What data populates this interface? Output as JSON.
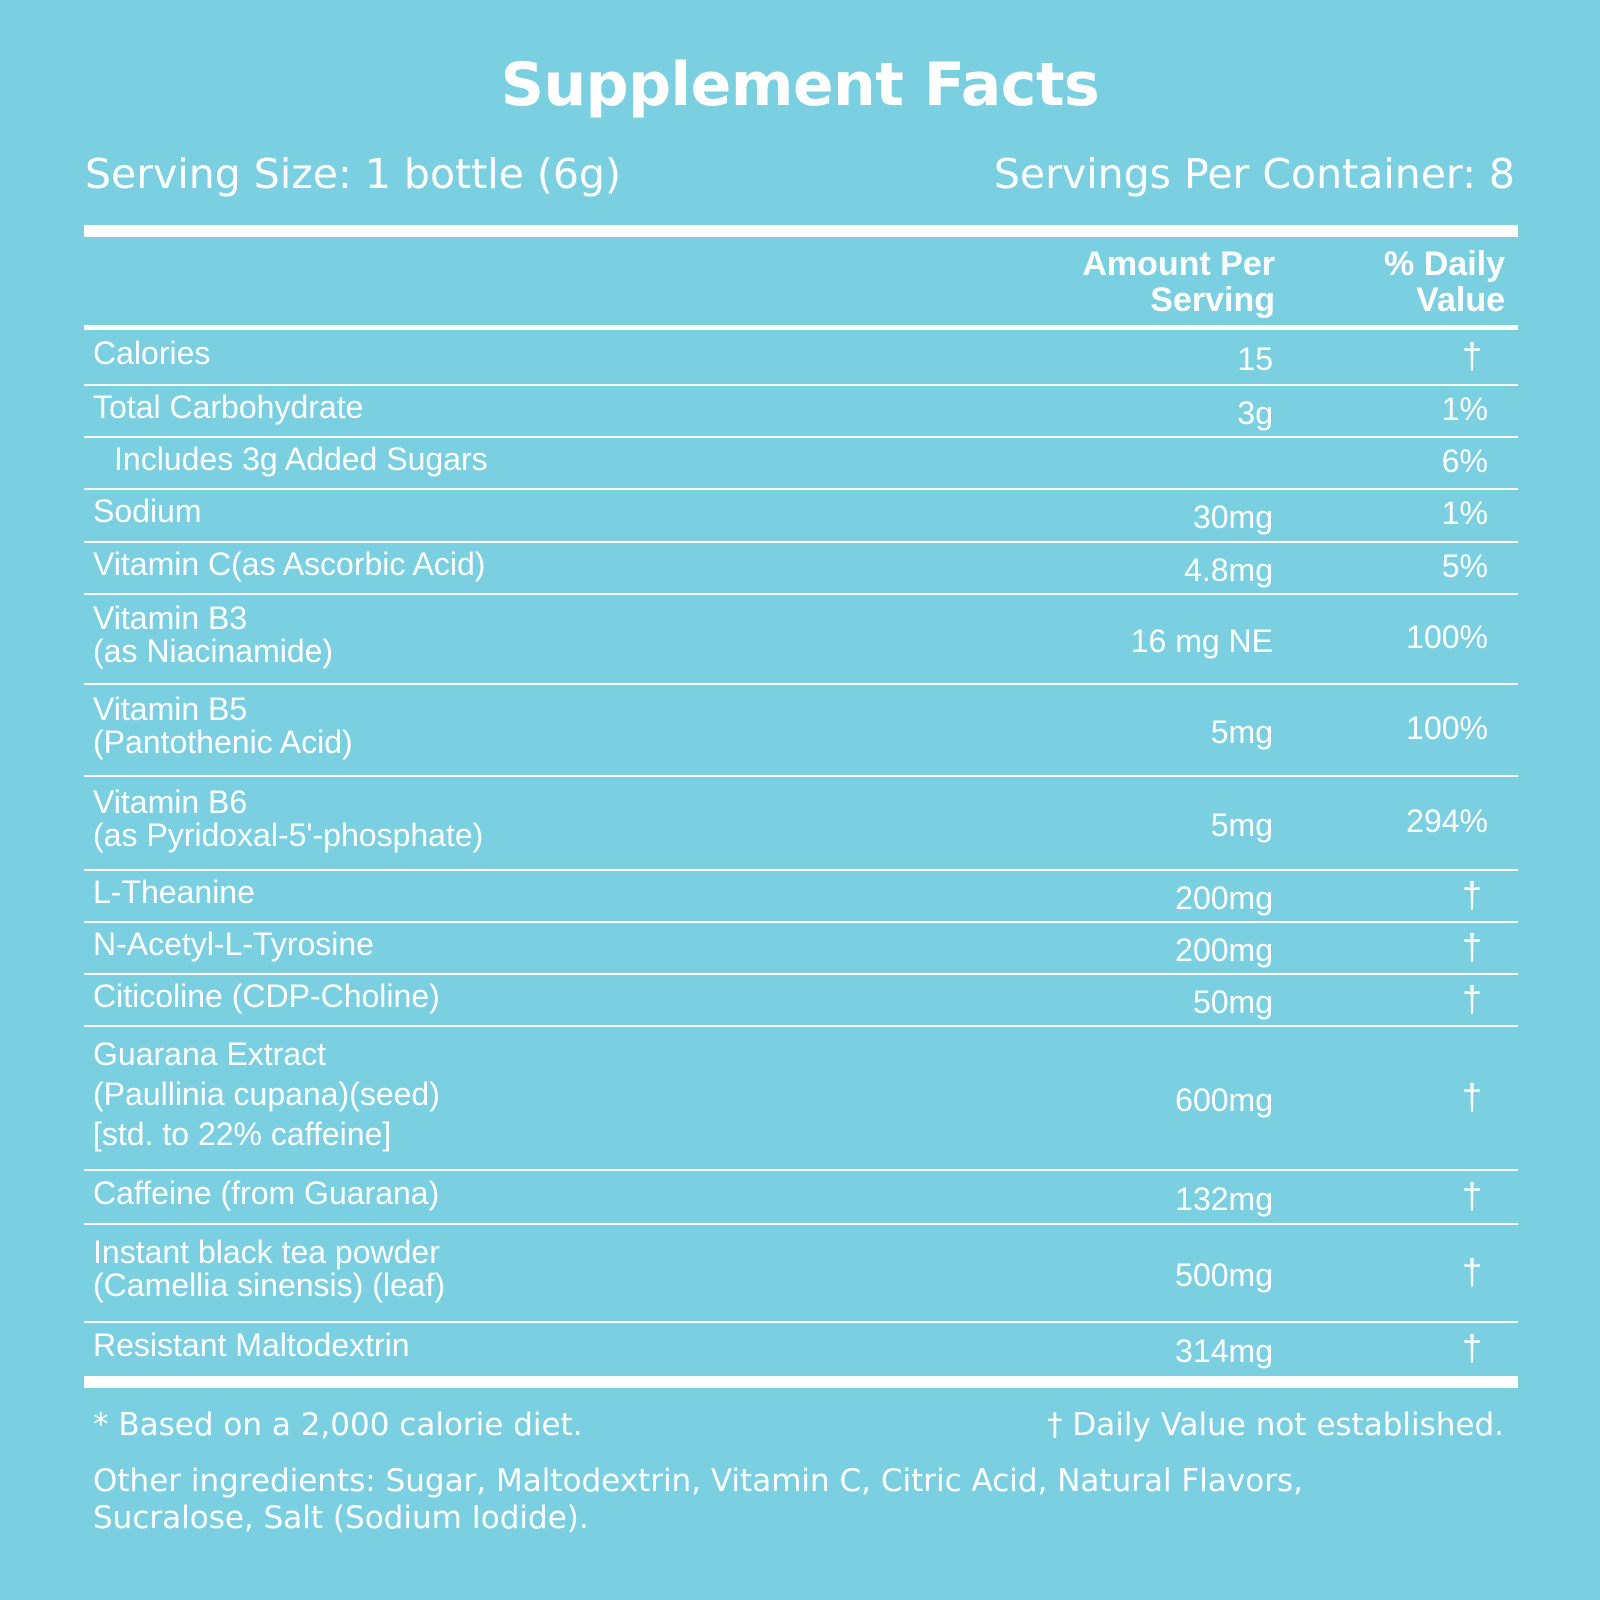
{
  "title": "Supplement Facts",
  "serving_size": "Serving Size: 1 bottle (6g)",
  "servings_per_container": "Servings Per Container: 8",
  "columns": {
    "amount_line1": "Amount Per",
    "amount_line2": "Serving",
    "dv_line1": "% Daily",
    "dv_line2": "Value"
  },
  "rows": [
    {
      "name": [
        "Calories"
      ],
      "amount": "15",
      "dv": "†"
    },
    {
      "name": [
        "Total Carbohydrate"
      ],
      "amount": "3g",
      "dv": "1%"
    },
    {
      "name": [
        "Includes 3g Added Sugars"
      ],
      "amount": "",
      "dv": "6%"
    },
    {
      "name": [
        "Sodium"
      ],
      "amount": "30mg",
      "dv": "1%"
    },
    {
      "name": [
        "Vitamin C(as Ascorbic Acid)"
      ],
      "amount": "4.8mg",
      "dv": "5%"
    },
    {
      "name": [
        "Vitamin B3",
        "(as Niacinamide)"
      ],
      "amount": "16 mg NE",
      "dv": "100%"
    },
    {
      "name": [
        "Vitamin B5",
        "(Pantothenic Acid)"
      ],
      "amount": "5mg",
      "dv": "100%"
    },
    {
      "name": [
        "Vitamin B6",
        "(as Pyridoxal-5'-phosphate)"
      ],
      "amount": "5mg",
      "dv": "294%"
    },
    {
      "name": [
        "L-Theanine"
      ],
      "amount": "200mg",
      "dv": "†"
    },
    {
      "name": [
        "N-Acetyl-L-Tyrosine"
      ],
      "amount": "200mg",
      "dv": "†"
    },
    {
      "name": [
        "Citicoline (CDP-Choline)"
      ],
      "amount": "50mg",
      "dv": "†"
    },
    {
      "name": [
        "Guarana Extract",
        "(Paullinia cupana)(seed)",
        "[std. to 22% caffeine]"
      ],
      "amount": "600mg",
      "dv": "†"
    },
    {
      "name": [
        "Caffeine (from Guarana)"
      ],
      "amount": "132mg",
      "dv": "†"
    },
    {
      "name": [
        "Instant black tea powder",
        "(Camellia sinensis) (leaf)"
      ],
      "amount": "500mg",
      "dv": "†"
    },
    {
      "name": [
        "Resistant Maltodextrin"
      ],
      "amount": "314mg",
      "dv": "†"
    }
  ],
  "footnote_left": "* Based on a 2,000 calorie diet.",
  "footnote_right": "† Daily Value not established.",
  "other_ingredients": "Other ingredients: Sugar, Maltodextrin, Vitamin C, Citric Acid, Natural Flavors, Sucralose, Salt (Sodium Iodide).",
  "colors": {
    "background": "#7acfe0",
    "text": "#ffffff"
  }
}
